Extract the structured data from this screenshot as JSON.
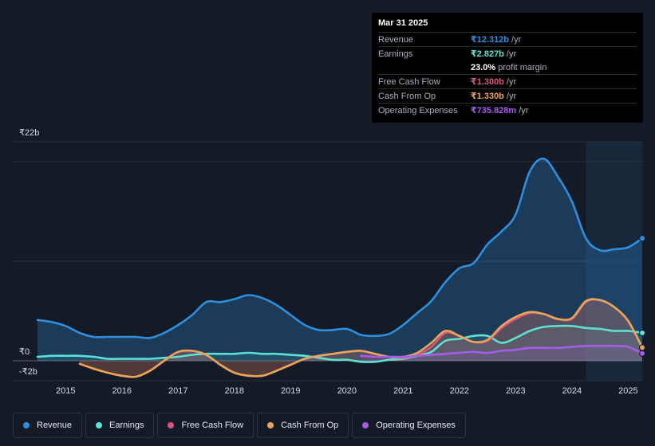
{
  "tooltip": {
    "date": "Mar 31 2025",
    "rows": [
      {
        "label": "Revenue",
        "value": "₹12.312b",
        "unit": "/yr",
        "color": "#2e8fe0"
      },
      {
        "label": "Earnings",
        "value": "₹2.827b",
        "unit": "/yr",
        "color": "#5ee0d6"
      },
      {
        "label": "",
        "value": "23.0%",
        "unit": "profit margin",
        "color": "#ffffff"
      },
      {
        "label": "Free Cash Flow",
        "value": "₹1.300b",
        "unit": "/yr",
        "color": "#d9567f"
      },
      {
        "label": "Cash From Op",
        "value": "₹1.330b",
        "unit": "/yr",
        "color": "#e8a55a"
      },
      {
        "label": "Operating Expenses",
        "value": "₹735.828m",
        "unit": "/yr",
        "color": "#a35ee8"
      }
    ]
  },
  "legend": [
    {
      "label": "Revenue",
      "color": "#2e8fe0"
    },
    {
      "label": "Earnings",
      "color": "#5ee0d6"
    },
    {
      "label": "Free Cash Flow",
      "color": "#d9567f"
    },
    {
      "label": "Cash From Op",
      "color": "#e8a55a"
    },
    {
      "label": "Operating Expenses",
      "color": "#a35ee8"
    }
  ],
  "chart_data": {
    "type": "area",
    "title": "",
    "unit": "₹b",
    "ylim": [
      -2,
      22
    ],
    "y_tick_labels": [
      "₹22b",
      "₹0",
      "-₹2b"
    ],
    "x_tick_labels": [
      "2015",
      "2016",
      "2017",
      "2018",
      "2019",
      "2020",
      "2021",
      "2022",
      "2023",
      "2024",
      "2025"
    ],
    "highlight_from": 2024.25,
    "series": [
      {
        "name": "Revenue",
        "color": "#2e8fe0",
        "x": [
          2014.5,
          2014.75,
          2015.0,
          2015.25,
          2015.5,
          2015.75,
          2016.0,
          2016.25,
          2016.5,
          2016.75,
          2017.0,
          2017.25,
          2017.5,
          2017.75,
          2018.0,
          2018.25,
          2018.5,
          2018.75,
          2019.0,
          2019.25,
          2019.5,
          2019.75,
          2020.0,
          2020.25,
          2020.5,
          2020.75,
          2021.0,
          2021.25,
          2021.5,
          2021.75,
          2022.0,
          2022.25,
          2022.5,
          2022.75,
          2023.0,
          2023.25,
          2023.5,
          2023.75,
          2024.0,
          2024.25,
          2024.5,
          2024.75,
          2025.0,
          2025.25
        ],
        "y": [
          4.1,
          3.9,
          3.5,
          2.8,
          2.4,
          2.4,
          2.4,
          2.4,
          2.3,
          2.8,
          3.6,
          4.6,
          5.9,
          5.9,
          6.2,
          6.6,
          6.3,
          5.6,
          4.6,
          3.6,
          3.1,
          3.1,
          3.2,
          2.6,
          2.5,
          2.7,
          3.6,
          4.8,
          6.0,
          7.9,
          9.3,
          9.8,
          11.7,
          13.0,
          14.7,
          19.0,
          20.3,
          18.5,
          16.0,
          12.3,
          11.1,
          11.2,
          11.4,
          12.3
        ]
      },
      {
        "name": "Earnings",
        "color": "#5ee0d6",
        "x": [
          2014.5,
          2014.75,
          2015.0,
          2015.25,
          2015.5,
          2015.75,
          2016.0,
          2016.25,
          2016.5,
          2016.75,
          2017.0,
          2017.25,
          2017.5,
          2017.75,
          2018.0,
          2018.25,
          2018.5,
          2018.75,
          2019.0,
          2019.25,
          2019.5,
          2019.75,
          2020.0,
          2020.25,
          2020.5,
          2020.75,
          2021.0,
          2021.25,
          2021.5,
          2021.75,
          2022.0,
          2022.25,
          2022.5,
          2022.75,
          2023.0,
          2023.25,
          2023.5,
          2023.75,
          2024.0,
          2024.25,
          2024.5,
          2024.75,
          2025.0,
          2025.25
        ],
        "y": [
          0.4,
          0.5,
          0.5,
          0.5,
          0.4,
          0.2,
          0.2,
          0.2,
          0.2,
          0.3,
          0.4,
          0.6,
          0.7,
          0.7,
          0.7,
          0.8,
          0.7,
          0.7,
          0.6,
          0.5,
          0.3,
          0.1,
          0.1,
          -0.1,
          -0.1,
          0.1,
          0.2,
          0.5,
          0.9,
          2.0,
          2.2,
          2.5,
          2.5,
          1.8,
          2.3,
          3.0,
          3.4,
          3.5,
          3.5,
          3.3,
          3.2,
          3.0,
          3.0,
          2.8
        ]
      },
      {
        "name": "Free Cash Flow",
        "color": "#d9567f",
        "x": [
          2015.25,
          2015.5,
          2015.75,
          2016.0,
          2016.25,
          2016.5,
          2016.75,
          2017.0,
          2017.25,
          2017.5,
          2017.75,
          2018.0,
          2018.25,
          2018.5,
          2018.75,
          2019.0,
          2019.25,
          2019.5,
          2019.75,
          2020.0,
          2020.25,
          2020.5,
          2020.75,
          2021.0,
          2021.25,
          2021.5,
          2021.75,
          2022.0,
          2022.25,
          2022.5,
          2022.75,
          2023.0,
          2023.25,
          2023.5,
          2023.75,
          2024.0,
          2024.25,
          2024.5,
          2024.75,
          2025.0,
          2025.25
        ],
        "y": [
          -0.3,
          -0.8,
          -1.2,
          -1.5,
          -1.6,
          -1.0,
          0.0,
          0.9,
          1.0,
          0.6,
          -0.4,
          -1.2,
          -1.5,
          -1.5,
          -1.0,
          -0.4,
          0.2,
          0.5,
          0.7,
          0.9,
          1.0,
          0.7,
          0.4,
          0.3,
          0.6,
          1.4,
          2.8,
          2.5,
          1.9,
          2.0,
          3.3,
          4.2,
          4.8,
          4.7,
          4.2,
          4.2,
          5.9,
          6.1,
          5.4,
          4.0,
          1.3
        ]
      },
      {
        "name": "Cash From Op",
        "color": "#e8a55a",
        "x": [
          2015.25,
          2015.5,
          2015.75,
          2016.0,
          2016.25,
          2016.5,
          2016.75,
          2017.0,
          2017.25,
          2017.5,
          2017.75,
          2018.0,
          2018.25,
          2018.5,
          2018.75,
          2019.0,
          2019.25,
          2019.5,
          2019.75,
          2020.0,
          2020.25,
          2020.5,
          2020.75,
          2021.0,
          2021.25,
          2021.5,
          2021.75,
          2022.0,
          2022.25,
          2022.5,
          2022.75,
          2023.0,
          2023.25,
          2023.5,
          2023.75,
          2024.0,
          2024.25,
          2024.5,
          2024.75,
          2025.0,
          2025.25
        ],
        "y": [
          -0.3,
          -0.8,
          -1.2,
          -1.5,
          -1.6,
          -1.0,
          0.0,
          0.9,
          1.0,
          0.6,
          -0.4,
          -1.2,
          -1.5,
          -1.5,
          -1.0,
          -0.4,
          0.2,
          0.5,
          0.7,
          0.9,
          1.0,
          0.7,
          0.4,
          0.4,
          0.8,
          1.8,
          3.0,
          2.5,
          1.9,
          2.1,
          3.5,
          4.4,
          4.9,
          4.7,
          4.2,
          4.3,
          6.0,
          6.1,
          5.4,
          4.0,
          1.33
        ]
      },
      {
        "name": "Operating Expenses",
        "color": "#a35ee8",
        "x": [
          2020.25,
          2020.5,
          2020.75,
          2021.0,
          2021.25,
          2021.5,
          2021.75,
          2022.0,
          2022.25,
          2022.5,
          2022.75,
          2023.0,
          2023.25,
          2023.5,
          2023.75,
          2024.0,
          2024.25,
          2024.5,
          2024.75,
          2025.0,
          2025.25
        ],
        "y": [
          0.5,
          0.4,
          0.4,
          0.4,
          0.5,
          0.6,
          0.7,
          0.8,
          0.9,
          0.8,
          1.0,
          1.1,
          1.3,
          1.3,
          1.3,
          1.4,
          1.5,
          1.5,
          1.5,
          1.4,
          0.74
        ]
      }
    ]
  }
}
